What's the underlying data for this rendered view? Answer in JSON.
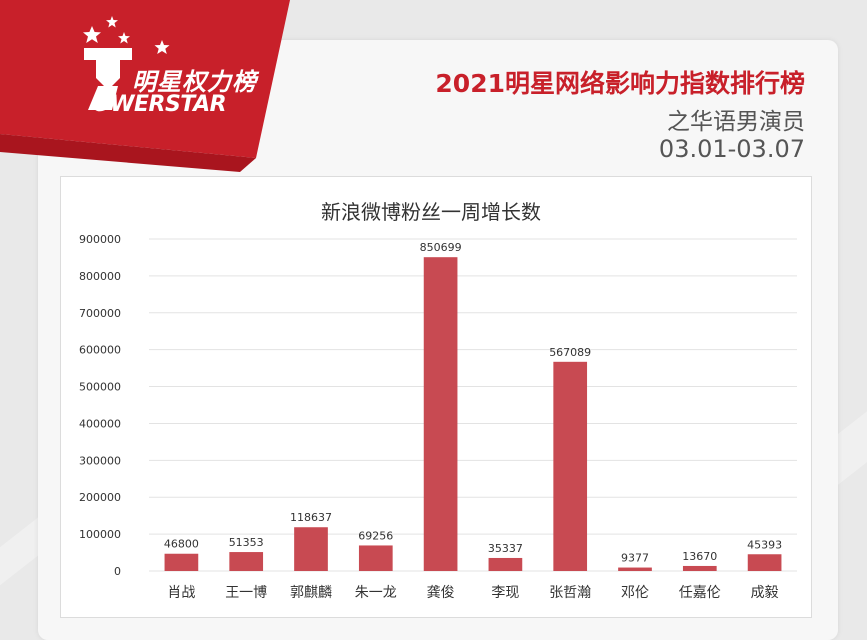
{
  "header": {
    "logo_cn": "明星权力榜",
    "logo_en": "OWERSTAR",
    "title": "2021明星网络影响力指数排行榜",
    "subtitle": "之华语男演员",
    "date_range": "03.01-03.07"
  },
  "colors": {
    "brand_red": "#c8202a",
    "bar": "#c84a52",
    "grid": "#e3e3e3"
  },
  "chart_data": {
    "type": "bar",
    "title": "新浪微博粉丝一周增长数",
    "xlabel": "",
    "ylabel": "",
    "categories": [
      "肖战",
      "王一博",
      "郭麒麟",
      "朱一龙",
      "龚俊",
      "李现",
      "张哲瀚",
      "邓伦",
      "任嘉伦",
      "成毅"
    ],
    "values": [
      46800,
      51353,
      118637,
      69256,
      850699,
      35337,
      567089,
      9377,
      13670,
      45393
    ],
    "data_labels": [
      "46800",
      "51353",
      "118637",
      "69256",
      "850699",
      "35337",
      "567089",
      "9377",
      "13670",
      "45393"
    ],
    "ylim": [
      0,
      900000
    ],
    "yticks": [
      0,
      100000,
      200000,
      300000,
      400000,
      500000,
      600000,
      700000,
      800000,
      900000
    ],
    "ytick_labels": [
      "0",
      "100000",
      "200000",
      "300000",
      "400000",
      "500000",
      "600000",
      "700000",
      "800000",
      "900000"
    ],
    "grid": true,
    "legend": "none"
  }
}
